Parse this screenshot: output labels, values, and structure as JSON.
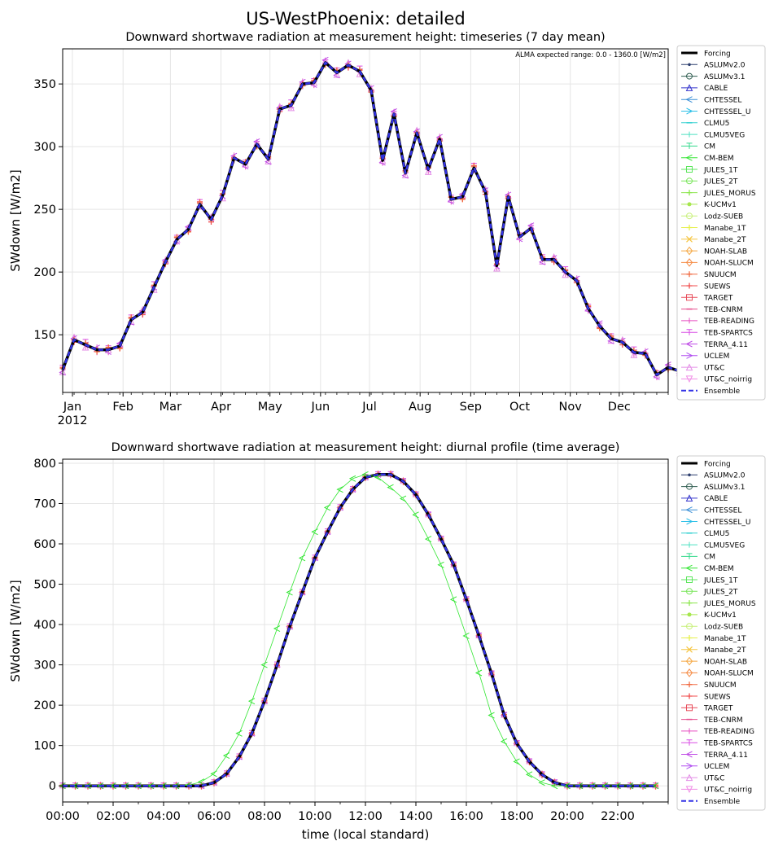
{
  "figure": {
    "suptitle": "US-WestPhoenix: detailed"
  },
  "legend_entries": [
    {
      "name": "Forcing",
      "color": "#000000",
      "marker": "none",
      "width": 3,
      "dash": ""
    },
    {
      "name": "ASLUMv2.0",
      "color": "#2c3e6e",
      "marker": "dot",
      "width": 1,
      "dash": ""
    },
    {
      "name": "ASLUMv3.1",
      "color": "#2f5d50",
      "marker": "circle",
      "width": 1,
      "dash": ""
    },
    {
      "name": "CABLE",
      "color": "#3333cc",
      "marker": "triangle-up",
      "width": 1,
      "dash": ""
    },
    {
      "name": "CHTESSEL",
      "color": "#3a8fd6",
      "marker": "triangle-left",
      "width": 1,
      "dash": ""
    },
    {
      "name": "CHTESSEL_U",
      "color": "#2fc0e8",
      "marker": "triangle-right",
      "width": 1,
      "dash": ""
    },
    {
      "name": "CLMU5",
      "color": "#33d1d1",
      "marker": "hline",
      "width": 1,
      "dash": ""
    },
    {
      "name": "CLMU5VEG",
      "color": "#4de0c0",
      "marker": "vline",
      "width": 1,
      "dash": ""
    },
    {
      "name": "CM",
      "color": "#33d98c",
      "marker": "tickdown",
      "width": 1,
      "dash": ""
    },
    {
      "name": "CM-BEM",
      "color": "#33e633",
      "marker": "caret-left",
      "width": 1,
      "dash": ""
    },
    {
      "name": "JULES_1T",
      "color": "#5ce65c",
      "marker": "square",
      "width": 1,
      "dash": ""
    },
    {
      "name": "JULES_2T",
      "color": "#7ae65c",
      "marker": "octagon",
      "width": 1,
      "dash": ""
    },
    {
      "name": "JULES_MORUS",
      "color": "#8ce64d",
      "marker": "plus-filled",
      "width": 1,
      "dash": ""
    },
    {
      "name": "K-UCMv1",
      "color": "#a6e64d",
      "marker": "star",
      "width": 1,
      "dash": ""
    },
    {
      "name": "Lodz-SUEB",
      "color": "#c8f07a",
      "marker": "hexagon",
      "width": 1,
      "dash": ""
    },
    {
      "name": "Manabe_1T",
      "color": "#e6f04d",
      "marker": "plus",
      "width": 1,
      "dash": ""
    },
    {
      "name": "Manabe_2T",
      "color": "#f5c542",
      "marker": "x",
      "width": 1,
      "dash": ""
    },
    {
      "name": "NOAH-SLAB",
      "color": "#f5a742",
      "marker": "diamond",
      "width": 1,
      "dash": ""
    },
    {
      "name": "NOAH-SLUCM",
      "color": "#f58a42",
      "marker": "thin-diamond",
      "width": 1,
      "dash": ""
    },
    {
      "name": "SNUUCM",
      "color": "#f06a42",
      "marker": "plus",
      "width": 1,
      "dash": ""
    },
    {
      "name": "SUEWS",
      "color": "#f04d4d",
      "marker": "plus-filled",
      "width": 1,
      "dash": ""
    },
    {
      "name": "TARGET",
      "color": "#e84d5c",
      "marker": "square-x",
      "width": 1,
      "dash": ""
    },
    {
      "name": "TEB-CNRM",
      "color": "#e64d8c",
      "marker": "hline",
      "width": 1,
      "dash": ""
    },
    {
      "name": "TEB-READING",
      "color": "#e64dc0",
      "marker": "vline",
      "width": 1,
      "dash": ""
    },
    {
      "name": "TEB-SPARTCS",
      "color": "#d94de6",
      "marker": "tickdown",
      "width": 1,
      "dash": ""
    },
    {
      "name": "TERRA_4.11",
      "color": "#c04de6",
      "marker": "caret-left",
      "width": 1,
      "dash": ""
    },
    {
      "name": "UCLEM",
      "color": "#b04df0",
      "marker": "caret-right",
      "width": 1,
      "dash": ""
    },
    {
      "name": "UT&C",
      "color": "#e38de6",
      "marker": "caret-up",
      "width": 1,
      "dash": ""
    },
    {
      "name": "UT&C_noirrig",
      "color": "#f08de6",
      "marker": "caret-down",
      "width": 1,
      "dash": ""
    },
    {
      "name": "Ensemble",
      "color": "#3333e6",
      "marker": "none",
      "width": 2,
      "dash": "6,3"
    }
  ],
  "chart_data": [
    {
      "type": "line",
      "title": "Downward shortwave radiation at measurement height: timeseries (7 day mean)",
      "annotation": "ALMA expected range: 0.0 - 1360.0 [W/m2]",
      "ylabel": "SWdown [W/m2]",
      "xlabel": "",
      "xaxis": "date",
      "x_start": "2011-12-26",
      "x_step_days": 7,
      "xlim": [
        "2011-12-26",
        "2012-12-31"
      ],
      "ylim": [
        104,
        378
      ],
      "yticks": [
        150,
        200,
        250,
        300,
        350
      ],
      "xticks": [
        {
          "date": "2012-01-01",
          "label": "Jan",
          "sublabel": "2012"
        },
        {
          "date": "2012-02-01",
          "label": "Feb",
          "sublabel": ""
        },
        {
          "date": "2012-03-01",
          "label": "Mar",
          "sublabel": ""
        },
        {
          "date": "2012-04-01",
          "label": "Apr",
          "sublabel": ""
        },
        {
          "date": "2012-05-01",
          "label": "May",
          "sublabel": ""
        },
        {
          "date": "2012-06-01",
          "label": "Jun",
          "sublabel": ""
        },
        {
          "date": "2012-07-01",
          "label": "Jul",
          "sublabel": ""
        },
        {
          "date": "2012-08-01",
          "label": "Aug",
          "sublabel": ""
        },
        {
          "date": "2012-09-01",
          "label": "Sep",
          "sublabel": ""
        },
        {
          "date": "2012-10-01",
          "label": "Oct",
          "sublabel": ""
        },
        {
          "date": "2012-11-01",
          "label": "Nov",
          "sublabel": ""
        },
        {
          "date": "2012-12-01",
          "label": "Dec",
          "sublabel": ""
        }
      ],
      "grid": true,
      "legend": "outside-right",
      "series": [
        {
          "name": "Forcing",
          "values": [
            122,
            146,
            142,
            138,
            138,
            141,
            162,
            168,
            188,
            208,
            226,
            234,
            254,
            242,
            261,
            291,
            286,
            302,
            290,
            330,
            333,
            350,
            351,
            367,
            359,
            365,
            360,
            345,
            289,
            326,
            279,
            311,
            282,
            306,
            258,
            260,
            283,
            264,
            205,
            260,
            228,
            235,
            210,
            210,
            200,
            193,
            171,
            157,
            147,
            144,
            136,
            135,
            118,
            124,
            121
          ]
        },
        {
          "name": "Ensemble",
          "values": [
            122,
            146,
            142,
            138,
            138,
            141,
            162,
            168,
            188,
            208,
            226,
            234,
            254,
            242,
            261,
            291,
            286,
            302,
            290,
            330,
            333,
            350,
            351,
            367,
            359,
            365,
            360,
            345,
            289,
            326,
            279,
            311,
            282,
            306,
            258,
            260,
            283,
            264,
            205,
            260,
            228,
            235,
            210,
            210,
            200,
            193,
            171,
            157,
            147,
            144,
            136,
            135,
            118,
            124,
            121
          ]
        }
      ]
    },
    {
      "type": "line",
      "title": "Downward shortwave radiation at measurement height: diurnal profile (time average)",
      "ylabel": "SWdown [W/m2]",
      "xlabel": "time (local standard)",
      "xlim": [
        0,
        24
      ],
      "ylim": [
        -40,
        810
      ],
      "yticks": [
        0,
        100,
        200,
        300,
        400,
        500,
        600,
        700,
        800
      ],
      "xticks": [
        {
          "hour": 0,
          "label": "00:00"
        },
        {
          "hour": 2,
          "label": "02:00"
        },
        {
          "hour": 4,
          "label": "04:00"
        },
        {
          "hour": 6,
          "label": "06:00"
        },
        {
          "hour": 8,
          "label": "08:00"
        },
        {
          "hour": 10,
          "label": "10:00"
        },
        {
          "hour": 12,
          "label": "12:00"
        },
        {
          "hour": 14,
          "label": "14:00"
        },
        {
          "hour": 16,
          "label": "16:00"
        },
        {
          "hour": 18,
          "label": "18:00"
        },
        {
          "hour": 20,
          "label": "20:00"
        },
        {
          "hour": 22,
          "label": "22:00"
        }
      ],
      "grid": true,
      "legend": "outside-right",
      "x": [
        0,
        0.5,
        1,
        1.5,
        2,
        2.5,
        3,
        3.5,
        4,
        4.5,
        5,
        5.5,
        6,
        6.5,
        7,
        7.5,
        8,
        8.5,
        9,
        9.5,
        10,
        10.5,
        11,
        11.5,
        12,
        12.5,
        13,
        13.5,
        14,
        14.5,
        15,
        15.5,
        16,
        16.5,
        17,
        17.5,
        18,
        18.5,
        19,
        19.5,
        20,
        20.5,
        21,
        21.5,
        22,
        22.5,
        23,
        23.5
      ],
      "series": [
        {
          "name": "Forcing",
          "values": [
            0,
            0,
            0,
            0,
            0,
            0,
            0,
            0,
            0,
            0,
            0,
            0,
            8,
            30,
            72,
            130,
            210,
            300,
            395,
            480,
            565,
            630,
            690,
            735,
            765,
            772,
            772,
            755,
            722,
            672,
            612,
            548,
            462,
            372,
            278,
            175,
            105,
            60,
            28,
            8,
            0,
            0,
            0,
            0,
            0,
            0,
            0,
            0
          ]
        },
        {
          "name": "CM-BEM",
          "values": [
            0,
            0,
            0,
            0,
            0,
            0,
            0,
            0,
            0,
            0,
            2,
            10,
            30,
            75,
            130,
            210,
            300,
            390,
            480,
            565,
            630,
            690,
            735,
            762,
            772,
            765,
            740,
            712,
            672,
            612,
            548,
            462,
            372,
            280,
            175,
            110,
            60,
            28,
            8,
            0,
            0,
            0,
            0,
            0,
            0,
            0,
            0,
            0
          ]
        },
        {
          "name": "Ensemble",
          "values": [
            0,
            0,
            0,
            0,
            0,
            0,
            0,
            0,
            0,
            0,
            0,
            0,
            8,
            30,
            72,
            130,
            210,
            300,
            395,
            480,
            565,
            630,
            690,
            735,
            765,
            772,
            772,
            755,
            722,
            672,
            612,
            548,
            462,
            372,
            278,
            175,
            105,
            60,
            28,
            8,
            0,
            0,
            0,
            0,
            0,
            0,
            0,
            0
          ]
        }
      ]
    }
  ]
}
